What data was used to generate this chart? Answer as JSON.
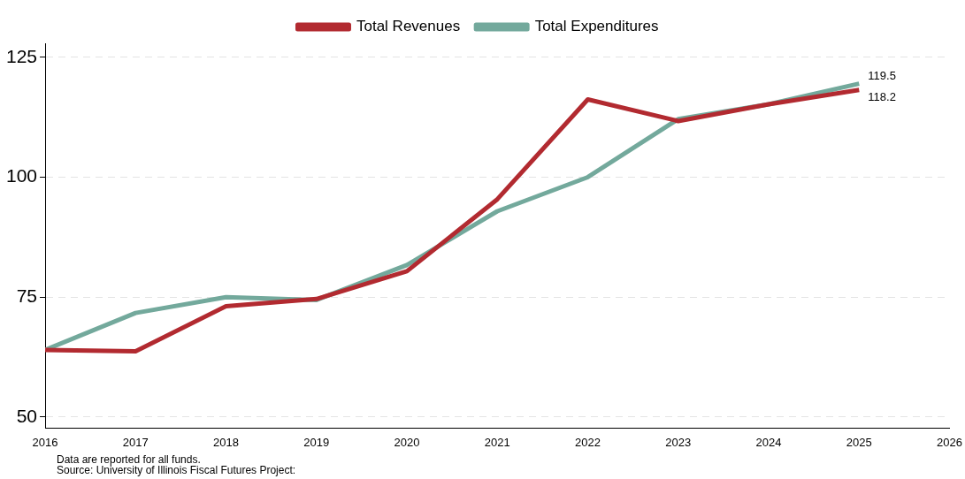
{
  "chart_data": {
    "type": "line",
    "x": [
      2016,
      2017,
      2018,
      2019,
      2020,
      2021,
      2022,
      2023,
      2024,
      2025
    ],
    "series": [
      {
        "name": "Total Revenues",
        "color": "#b22a30",
        "values": [
          64.0,
          63.7,
          73.1,
          74.6,
          80.4,
          95.4,
          116.2,
          111.7,
          115.2,
          118.2
        ],
        "value_labels": [
          null,
          null,
          null,
          null,
          null,
          null,
          null,
          null,
          null,
          "118.2"
        ]
      },
      {
        "name": "Total Expenditures",
        "color": "#73a99c",
        "values": [
          64.0,
          71.7,
          75.0,
          74.4,
          81.7,
          92.9,
          100.0,
          112.1,
          115.2,
          119.5
        ],
        "value_labels": [
          null,
          null,
          null,
          null,
          null,
          null,
          null,
          null,
          null,
          "119.5"
        ]
      }
    ],
    "xlim": [
      2016,
      2026
    ],
    "xticks": [
      2016,
      2017,
      2018,
      2019,
      2020,
      2021,
      2022,
      2023,
      2024,
      2025,
      2026
    ],
    "ylim": [
      47.7,
      127.9
    ],
    "yticks": [
      50,
      75,
      100,
      125
    ],
    "grid": "y",
    "legend": "top",
    "marker": "none",
    "line_style": "solid",
    "annotations": [
      "Data are reported for all funds.",
      "Source:  University of Illinois Fiscal Futures Project:"
    ]
  }
}
